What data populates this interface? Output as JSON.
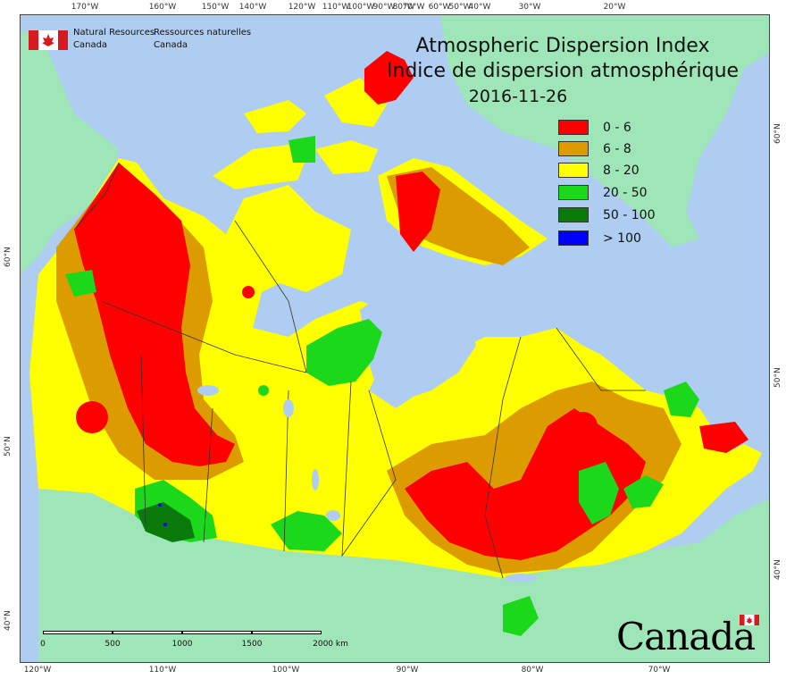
{
  "title": {
    "line_en": "Atmospheric Dispersion Index",
    "line_fr": "Indice de dispersion atmosphérique",
    "date": "2016-11-26"
  },
  "agency": {
    "name_en_1": "Natural Resources",
    "name_en_2": "Canada",
    "name_fr_1": "Ressources naturelles",
    "name_fr_2": "Canada"
  },
  "wordmark": "Canada",
  "legend": [
    {
      "label": "0 - 6",
      "color": "#ff0000"
    },
    {
      "label": "6 - 8",
      "color": "#dc9c00"
    },
    {
      "label": "8 - 20",
      "color": "#ffff00"
    },
    {
      "label": "20 - 50",
      "color": "#1bd81b"
    },
    {
      "label": "50 - 100",
      "color": "#0a7a0a"
    },
    {
      "label": "> 100",
      "color": "#0000ff"
    }
  ],
  "colors": {
    "water": "#aecdf0",
    "land_outside": "#9ee6b8",
    "border": "#333333"
  },
  "ticks": {
    "top": [
      "170°W",
      "160°W",
      "150°W",
      "140°W",
      "120°W",
      "110°W",
      "100°W",
      "90°W",
      "80°W",
      "70°W",
      "60°W",
      "50°W",
      "40°W",
      "30°W",
      "20°W"
    ],
    "bottom": [
      "120°W",
      "110°W",
      "100°W",
      "90°W",
      "80°W",
      "70°W"
    ],
    "left": [
      "60°N",
      "50°N",
      "40°N"
    ],
    "right": [
      "60°N",
      "50°N",
      "40°N"
    ]
  },
  "scalebar": {
    "labels": [
      "0",
      "500",
      "1000",
      "1500",
      "2000 km"
    ]
  }
}
